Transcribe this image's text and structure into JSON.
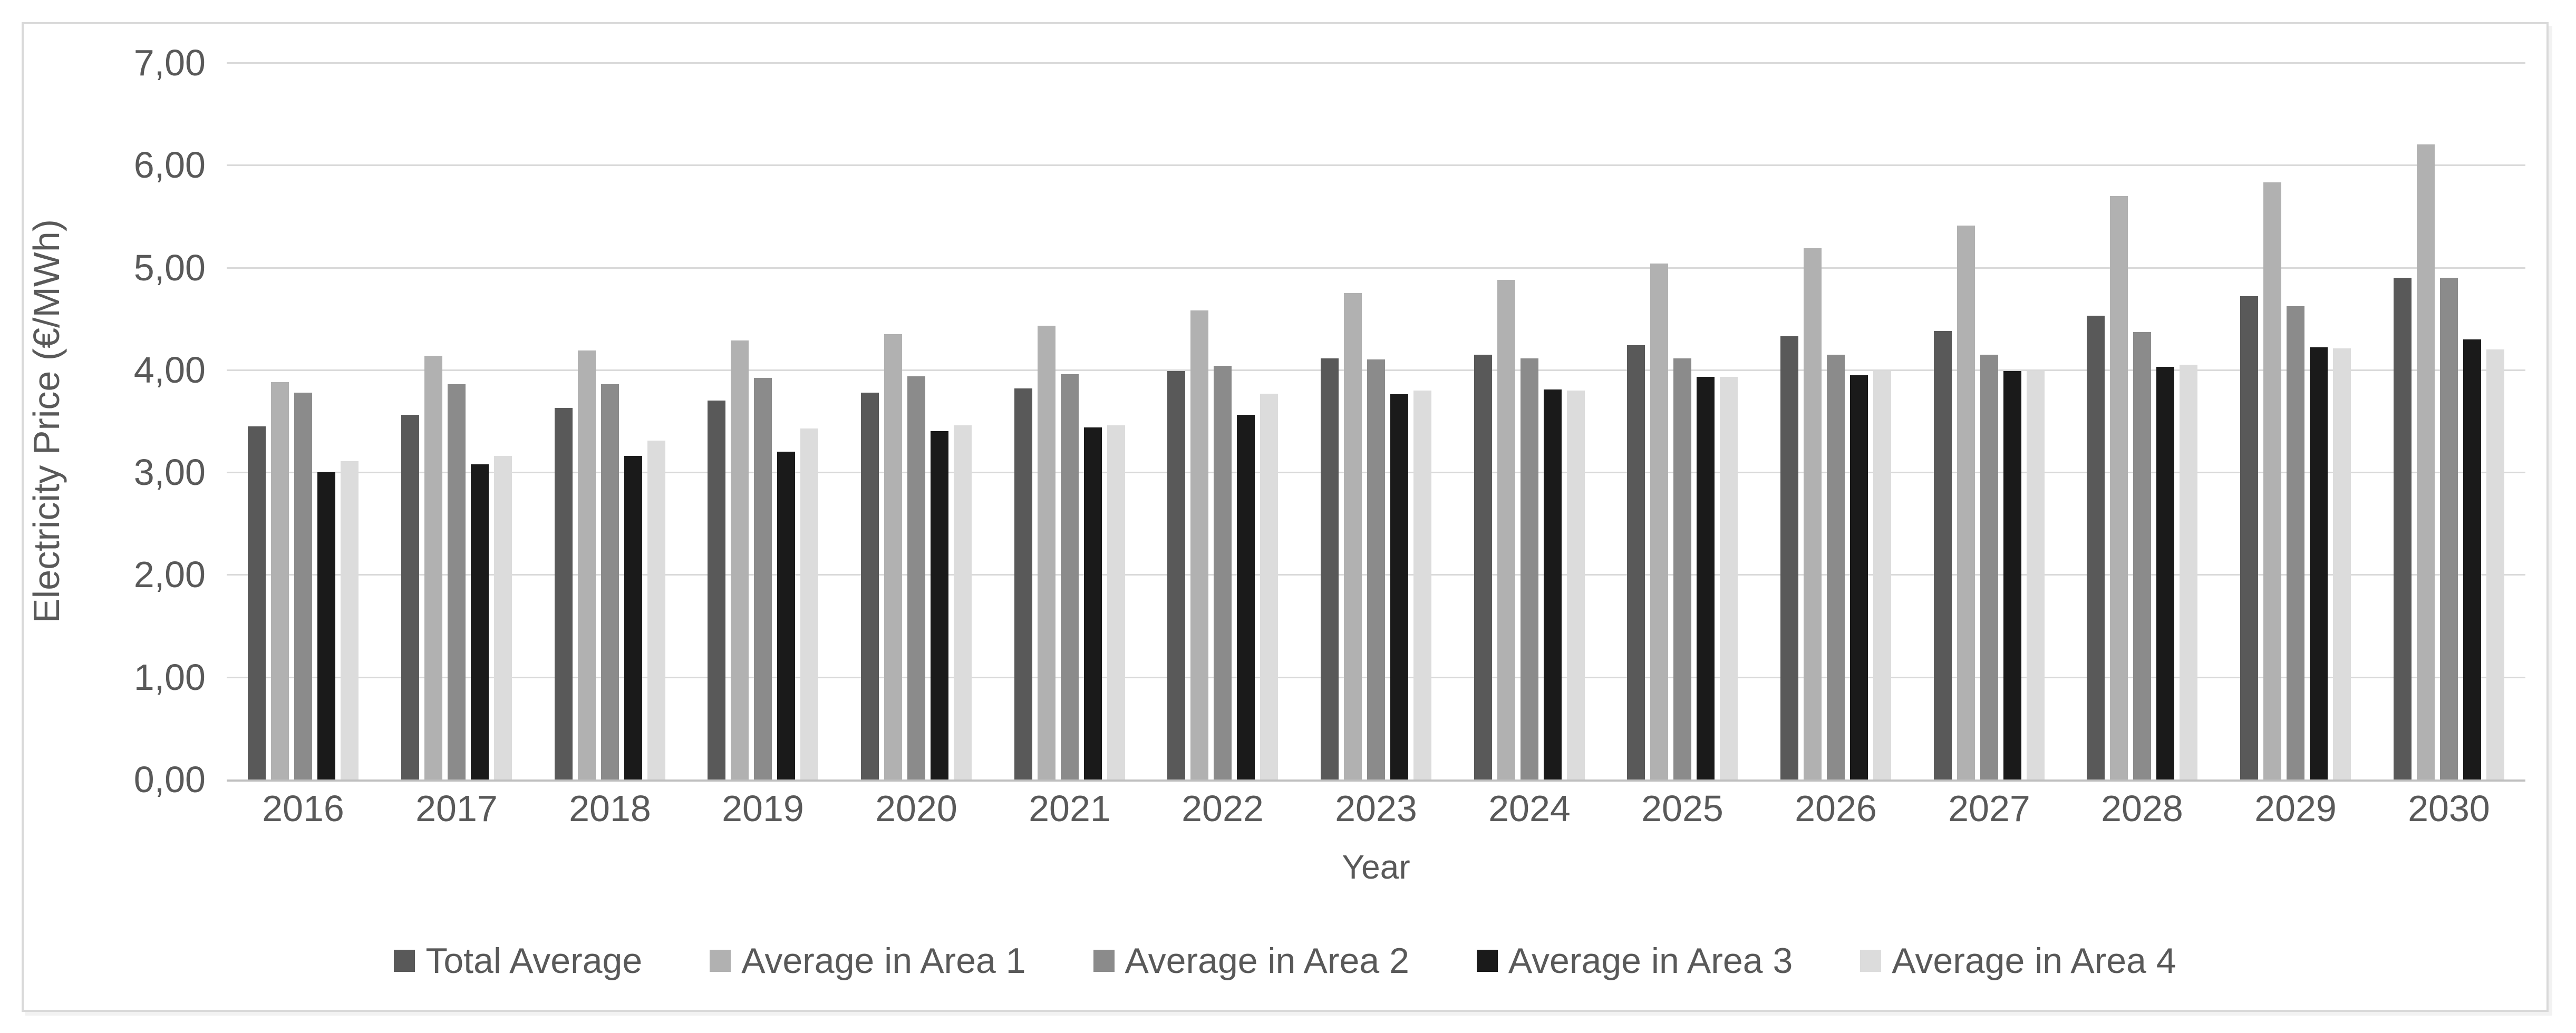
{
  "chart_data": {
    "type": "bar",
    "title": "",
    "xlabel": "Year",
    "ylabel": "Electricity Price (€/MWh)",
    "ylim": [
      0,
      7
    ],
    "ytick_step": 1,
    "ytick_labels": [
      "0,00",
      "1,00",
      "2,00",
      "3,00",
      "4,00",
      "5,00",
      "6,00",
      "7,00"
    ],
    "grid": true,
    "legend_position": "bottom",
    "categories": [
      "2016",
      "2017",
      "2018",
      "2019",
      "2020",
      "2021",
      "2022",
      "2023",
      "2024",
      "2025",
      "2026",
      "2027",
      "2028",
      "2029",
      "2030"
    ],
    "series": [
      {
        "name": "Total Average",
        "color": "#595959",
        "values": [
          3.45,
          3.56,
          3.63,
          3.7,
          3.78,
          3.82,
          3.99,
          4.11,
          4.15,
          4.24,
          4.33,
          4.38,
          4.53,
          4.72,
          4.9
        ]
      },
      {
        "name": "Average in Area 1",
        "color": "#b1b1b1",
        "values": [
          3.88,
          4.14,
          4.19,
          4.29,
          4.35,
          4.43,
          4.58,
          4.75,
          4.88,
          5.04,
          5.19,
          5.41,
          5.7,
          5.83,
          6.2
        ]
      },
      {
        "name": "Average in Area 2",
        "color": "#8b8b8b",
        "values": [
          3.78,
          3.86,
          3.86,
          3.92,
          3.94,
          3.96,
          4.04,
          4.1,
          4.11,
          4.11,
          4.15,
          4.15,
          4.37,
          4.62,
          4.9
        ]
      },
      {
        "name": "Average in Area 3",
        "color": "#1a1a1a",
        "values": [
          3.0,
          3.08,
          3.16,
          3.2,
          3.4,
          3.44,
          3.56,
          3.76,
          3.81,
          3.93,
          3.95,
          3.99,
          4.03,
          4.22,
          4.3
        ]
      },
      {
        "name": "Average in Area 4",
        "color": "#dcdcdc",
        "values": [
          3.11,
          3.16,
          3.31,
          3.43,
          3.46,
          3.46,
          3.77,
          3.8,
          3.8,
          3.93,
          3.99,
          3.99,
          4.05,
          4.21,
          4.2
        ]
      }
    ]
  },
  "style_colors": {
    "gridline": "#d9d9d9",
    "axis_line": "#bfbfbf",
    "text": "#595959",
    "frame_border": "#d9d9d9",
    "background": "#ffffff"
  }
}
